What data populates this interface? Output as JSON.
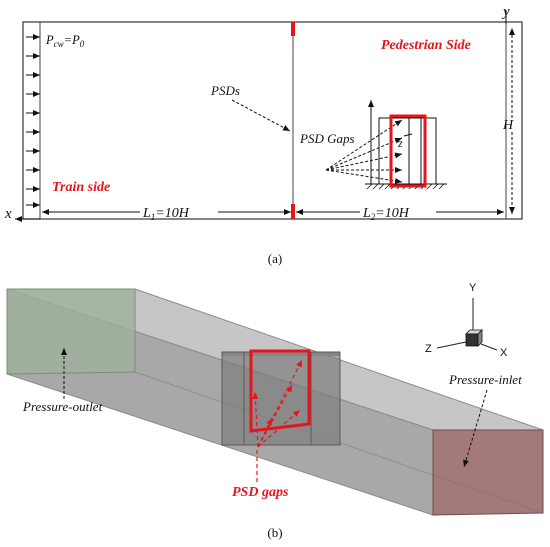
{
  "panel_a": {
    "axis_x": "x",
    "axis_y": "y",
    "inlet_condition": {
      "p": "P",
      "sub": "cw",
      "eq": "=",
      "rhs_p": "P",
      "rhs_sub": "0"
    },
    "pedestrian_side": "Pedestrian Side",
    "train_side": "Train side",
    "psds_label": "PSDs",
    "psd_gaps_label": "PSD Gaps",
    "gap_symbol": "z",
    "height_label": "H",
    "l1": {
      "l": "L",
      "sub": "1",
      "rest": "=10H"
    },
    "l2": {
      "l": "L",
      "sub": "2",
      "rest": "=10H"
    },
    "caption": "(a)"
  },
  "panel_b": {
    "axis_y": "Y",
    "axis_z": "Z",
    "axis_x": "X",
    "pressure_outlet": "Pressure-outlet",
    "pressure_inlet": "Pressure-inlet",
    "psd_gaps_label": "PSD gaps",
    "caption": "(b)"
  },
  "colors": {
    "accent_red": "#e8141c",
    "outlet_face": "#9fb09b",
    "inlet_face": "#9a6a6c",
    "box_gray": "#a9a9a9"
  }
}
